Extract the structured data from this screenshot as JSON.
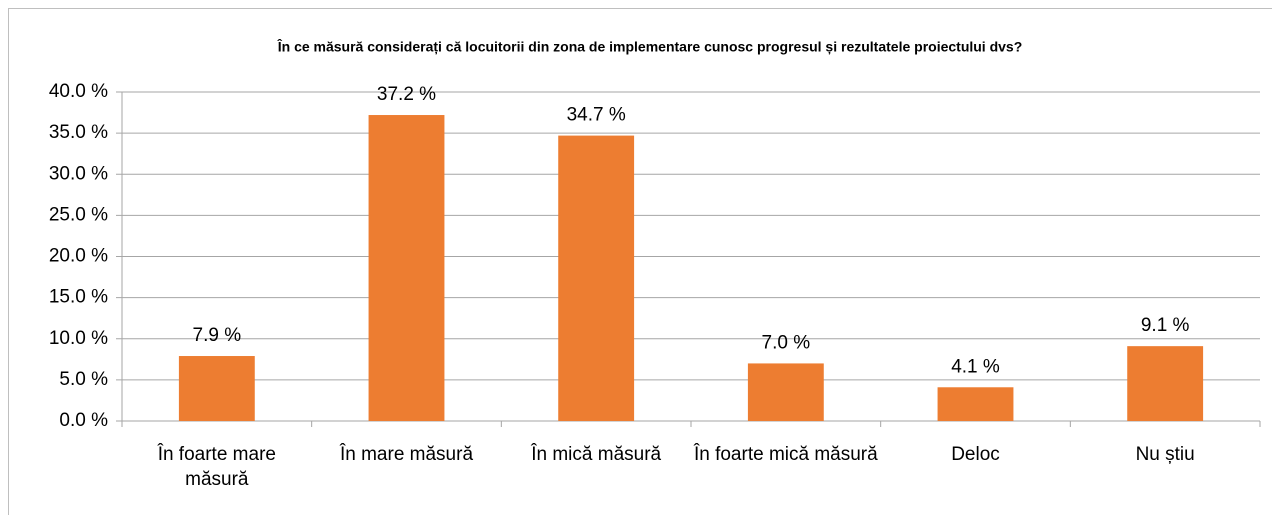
{
  "chart_data": {
    "type": "bar",
    "title": "În ce măsură considerați că locuitorii din zona de implementare cunosc progresul și rezultatele proiectului dvs?",
    "categories": [
      "În foarte mare măsură",
      "În mare măsură",
      "În mică măsură",
      "În foarte mică măsură",
      "Deloc",
      "Nu știu"
    ],
    "values": [
      7.9,
      37.2,
      34.7,
      7.0,
      4.1,
      9.1
    ],
    "value_labels": [
      "7.9 %",
      "37.2 %",
      "34.7 %",
      "7.0 %",
      "4.1 %",
      "9.1 %"
    ],
    "color": "#ed7d31",
    "ylim": [
      0,
      40
    ],
    "yticks": [
      {
        "value": 0,
        "label": "0.0 %"
      },
      {
        "value": 5,
        "label": "5.0 %"
      },
      {
        "value": 10,
        "label": "10.0 %"
      },
      {
        "value": 15,
        "label": "15.0 %"
      },
      {
        "value": 20,
        "label": "20.0 %"
      },
      {
        "value": 25,
        "label": "25.0 %"
      },
      {
        "value": 30,
        "label": "30.0 %"
      },
      {
        "value": 35,
        "label": "35.0 %"
      },
      {
        "value": 40,
        "label": "40.0 %"
      }
    ],
    "grid": true
  }
}
